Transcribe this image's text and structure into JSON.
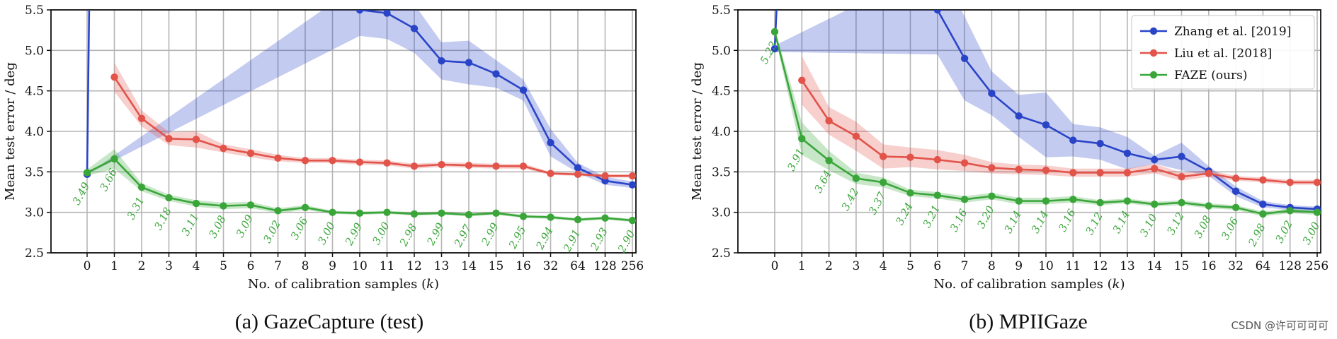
{
  "watermark": "CSDN @许可可可可",
  "colors": {
    "zhang": "#2a44c8",
    "liu": "#e2534a",
    "faze": "#3aa63a",
    "label": "#3aa63a"
  },
  "legend": [
    {
      "key": "zhang",
      "label": "Zhang et al. [2019]"
    },
    {
      "key": "liu",
      "label": "Liu et al. [2018]"
    },
    {
      "key": "faze",
      "label": "FAZE (ours)"
    }
  ],
  "chart_data": [
    {
      "type": "line",
      "caption": "(a) GazeCapture (test)",
      "xlabel": "No. of calibration samples (k)",
      "ylabel": "Mean test error / deg",
      "ylim": [
        2.5,
        5.5
      ],
      "categories": [
        "0",
        "1",
        "2",
        "3",
        "4",
        "5",
        "6",
        "7",
        "8",
        "9",
        "10",
        "11",
        "12",
        "13",
        "14",
        "15",
        "16",
        "32",
        "64",
        "128",
        "256"
      ],
      "y_ticks": [
        "2.5",
        "3.0",
        "3.5",
        "4.0",
        "4.5",
        "5.0",
        "5.5"
      ],
      "grid": true,
      "series": [
        {
          "key": "zhang",
          "name": "Zhang et al. [2019]",
          "values": [
            3.47,
            null,
            null,
            null,
            null,
            null,
            null,
            null,
            null,
            null,
            5.5,
            5.46,
            5.27,
            4.87,
            4.85,
            4.71,
            4.51,
            3.86,
            3.55,
            3.39,
            3.34
          ],
          "band": [
            0,
            0,
            0,
            0,
            0,
            0,
            0,
            0,
            0,
            0,
            0.32,
            0.32,
            0.3,
            0.23,
            0.27,
            0.17,
            0.13,
            0.17,
            0.06,
            0.05,
            0.04
          ],
          "spike_from": 0
        },
        {
          "key": "liu",
          "name": "Liu et al. [2018]",
          "values": [
            null,
            4.67,
            4.16,
            3.91,
            3.9,
            3.79,
            3.73,
            3.67,
            3.64,
            3.64,
            3.62,
            3.61,
            3.57,
            3.59,
            3.58,
            3.57,
            3.57,
            3.48,
            3.47,
            3.45,
            3.45
          ],
          "band": [
            0,
            0.18,
            0.1,
            0.08,
            0.1,
            0.05,
            0.05,
            0.04,
            0.03,
            0.03,
            0.03,
            0.03,
            0.03,
            0.03,
            0.03,
            0.03,
            0.03,
            0.02,
            0.02,
            0.02,
            0.02
          ]
        },
        {
          "key": "faze",
          "name": "FAZE (ours)",
          "values": [
            3.49,
            3.66,
            3.31,
            3.18,
            3.11,
            3.08,
            3.09,
            3.02,
            3.06,
            3.0,
            2.99,
            3.0,
            2.98,
            2.99,
            2.97,
            2.99,
            2.95,
            2.94,
            2.91,
            2.93,
            2.9
          ],
          "band": [
            0.04,
            0.12,
            0.05,
            0.04,
            0.04,
            0.04,
            0.04,
            0.03,
            0.03,
            0.02,
            0.02,
            0.02,
            0.02,
            0.02,
            0.02,
            0.02,
            0.02,
            0.02,
            0.02,
            0.02,
            0.02
          ]
        }
      ],
      "annotations": [
        "3.49",
        "3.66",
        "3.31",
        "3.18",
        "3.11",
        "3.08",
        "3.09",
        "3.02",
        "3.06",
        "3.00",
        "2.99",
        "3.00",
        "2.98",
        "2.99",
        "2.97",
        "2.99",
        "2.95",
        "2.94",
        "2.91",
        "2.93",
        "2.90"
      ]
    },
    {
      "type": "line",
      "caption": "(b) MPIIGaze",
      "xlabel": "No. of calibration samples (k)",
      "ylabel": "Mean test error / deg",
      "ylim": [
        2.5,
        5.5
      ],
      "categories": [
        "0",
        "1",
        "2",
        "3",
        "4",
        "5",
        "6",
        "7",
        "8",
        "9",
        "10",
        "11",
        "12",
        "13",
        "14",
        "15",
        "16",
        "32",
        "64",
        "128",
        "256"
      ],
      "y_ticks": [
        "2.5",
        "3.0",
        "3.5",
        "4.0",
        "4.5",
        "5.0",
        "5.5"
      ],
      "grid": true,
      "legend_position": "top-right",
      "series": [
        {
          "key": "zhang",
          "name": "Zhang et al. [2019]",
          "values": [
            5.02,
            null,
            null,
            null,
            null,
            null,
            5.5,
            4.9,
            4.47,
            4.19,
            4.08,
            3.89,
            3.85,
            3.73,
            3.65,
            3.69,
            3.51,
            3.26,
            3.1,
            3.06,
            3.04
          ],
          "band": [
            0.04,
            0,
            0,
            0,
            0,
            0,
            0.55,
            0.52,
            0.27,
            0.26,
            0.4,
            0.2,
            0.2,
            0.2,
            0.05,
            0.17,
            0.06,
            0.06,
            0.04,
            0.03,
            0.03
          ],
          "spike_from": 0
        },
        {
          "key": "liu",
          "name": "Liu et al. [2018]",
          "values": [
            null,
            4.63,
            4.13,
            3.94,
            3.69,
            3.68,
            3.65,
            3.61,
            3.55,
            3.53,
            3.52,
            3.49,
            3.49,
            3.49,
            3.54,
            3.44,
            3.48,
            3.42,
            3.4,
            3.37,
            3.37
          ],
          "band": [
            0,
            0.3,
            0.17,
            0.18,
            0.15,
            0.12,
            0.12,
            0.1,
            0.07,
            0.06,
            0.06,
            0.05,
            0.05,
            0.05,
            0.06,
            0.05,
            0.04,
            0.03,
            0.03,
            0.03,
            0.03
          ]
        },
        {
          "key": "faze",
          "name": "FAZE (ours)",
          "values": [
            5.23,
            3.91,
            3.64,
            3.42,
            3.37,
            3.24,
            3.21,
            3.16,
            3.2,
            3.14,
            3.14,
            3.16,
            3.12,
            3.14,
            3.1,
            3.12,
            3.08,
            3.06,
            2.98,
            3.02,
            3.0
          ],
          "band": [
            0.04,
            0.2,
            0.12,
            0.07,
            0.06,
            0.04,
            0.04,
            0.04,
            0.04,
            0.04,
            0.04,
            0.04,
            0.03,
            0.03,
            0.03,
            0.03,
            0.03,
            0.03,
            0.03,
            0.03,
            0.03
          ]
        }
      ],
      "annotations": [
        "5.23",
        "3.91",
        "3.64",
        "3.42",
        "3.37",
        "3.24",
        "3.21",
        "3.16",
        "3.20",
        "3.14",
        "3.14",
        "3.16",
        "3.12",
        "3.14",
        "3.10",
        "3.12",
        "3.08",
        "3.06",
        "2.98",
        "3.02",
        "3.00"
      ]
    }
  ]
}
